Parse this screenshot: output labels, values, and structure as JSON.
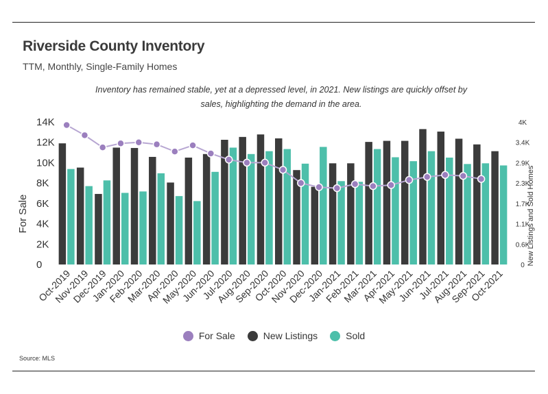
{
  "header": {
    "title": "Riverside County Inventory",
    "subtitle": "TTM, Monthly, Single-Family Homes",
    "note": "Inventory has remained stable, yet at a depressed level, in 2021. New listings are quickly offset by sales, highlighting the demand in the area."
  },
  "source": "Source:  MLS",
  "colors": {
    "for_sale": "#9b7fbe",
    "new_listings": "#3b3b3b",
    "sold": "#4dbfaa",
    "line": "#b7a6d2"
  },
  "chart_data": {
    "type": "bar",
    "categories": [
      "Oct-2019",
      "Nov-2019",
      "Dec-2019",
      "Jan-2020",
      "Feb-2020",
      "Mar-2020",
      "Apr-2020",
      "May-2020",
      "Jun-2020",
      "Jul-2020",
      "Aug-2020",
      "Sep-2020",
      "Oct-2020",
      "Nov-2020",
      "Dec-2020",
      "Jan-2021",
      "Feb-2021",
      "Mar-2021",
      "Apr-2021",
      "May-2021",
      "Jun-2021",
      "Jul-2021",
      "Aug-2021",
      "Sep-2021",
      "Oct-2021"
    ],
    "ylabel": "For Sale",
    "y2label": "New Listings and Sold Homes",
    "ylim": [
      0,
      14000
    ],
    "y2lim": [
      0,
      4000
    ],
    "yticks": [
      "0",
      "2K",
      "4K",
      "6K",
      "8K",
      "10K",
      "12K",
      "14K"
    ],
    "y2ticks": [
      "0",
      "0.6K",
      "1.1K",
      "1.7K",
      "2.3K",
      "2.9K",
      "3.4K",
      "4K"
    ],
    "legend_position": "bottom",
    "series": [
      {
        "name": "For Sale",
        "kind": "line",
        "axis": "left",
        "values": [
          13700,
          12700,
          11500,
          11900,
          12000,
          11800,
          11100,
          11700,
          10900,
          10300,
          10000,
          10000,
          9300,
          8000,
          7600,
          7500,
          7900,
          7700,
          7800,
          8300,
          8600,
          8800,
          8700,
          8400,
          null
        ]
      },
      {
        "name": "New Listings",
        "kind": "bar",
        "axis": "right",
        "values": [
          3400,
          2720,
          1980,
          3280,
          3270,
          3020,
          2300,
          3000,
          3100,
          3500,
          3580,
          3650,
          3540,
          2650,
          2180,
          2840,
          2840,
          3440,
          3470,
          3470,
          3800,
          3730,
          3530,
          3370,
          3180
        ]
      },
      {
        "name": "Sold",
        "kind": "bar",
        "axis": "right",
        "values": [
          2680,
          2200,
          2360,
          2010,
          2050,
          2560,
          1920,
          1780,
          2600,
          3280,
          3100,
          3180,
          3240,
          2830,
          3300,
          2340,
          2320,
          3240,
          3010,
          2900,
          3180,
          3000,
          2820,
          2840,
          2780
        ]
      }
    ]
  }
}
